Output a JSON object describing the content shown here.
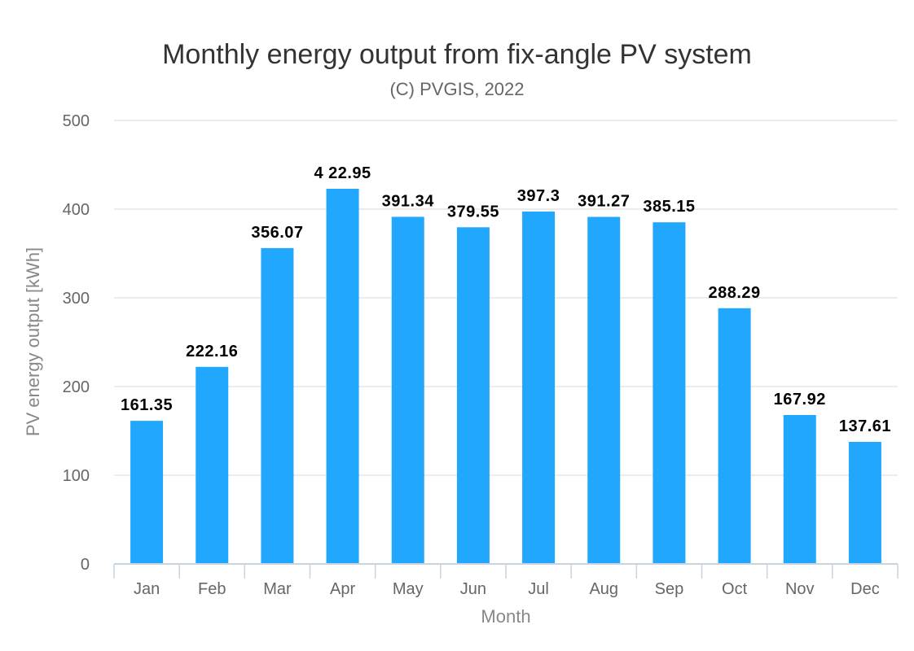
{
  "chart_data": {
    "type": "bar",
    "title": "Monthly energy output from fix-angle PV system",
    "subtitle": "(C) PVGIS, 2022",
    "xlabel": "Month",
    "ylabel": "PV energy output [kWh]",
    "categories": [
      "Jan",
      "Feb",
      "Mar",
      "Apr",
      "May",
      "Jun",
      "Jul",
      "Aug",
      "Sep",
      "Oct",
      "Nov",
      "Dec"
    ],
    "values": [
      161.35,
      222.16,
      356.07,
      422.95,
      391.34,
      379.55,
      397.3,
      391.27,
      385.15,
      288.29,
      167.92,
      137.61
    ],
    "data_labels": [
      "161.35",
      "222.16",
      "356.07",
      "4 22.95",
      "391.34",
      "379.55",
      "397.3",
      "391.27",
      "385.15",
      "288.29",
      "167.92",
      "137.61"
    ],
    "ylim": [
      0,
      500
    ],
    "yticks": [
      0,
      100,
      200,
      300,
      400,
      500
    ],
    "grid": true,
    "legend": "none",
    "bar_color": "#22a7fe",
    "grid_color": "#d9d9d9",
    "axis_color": "#c5d3e3"
  }
}
